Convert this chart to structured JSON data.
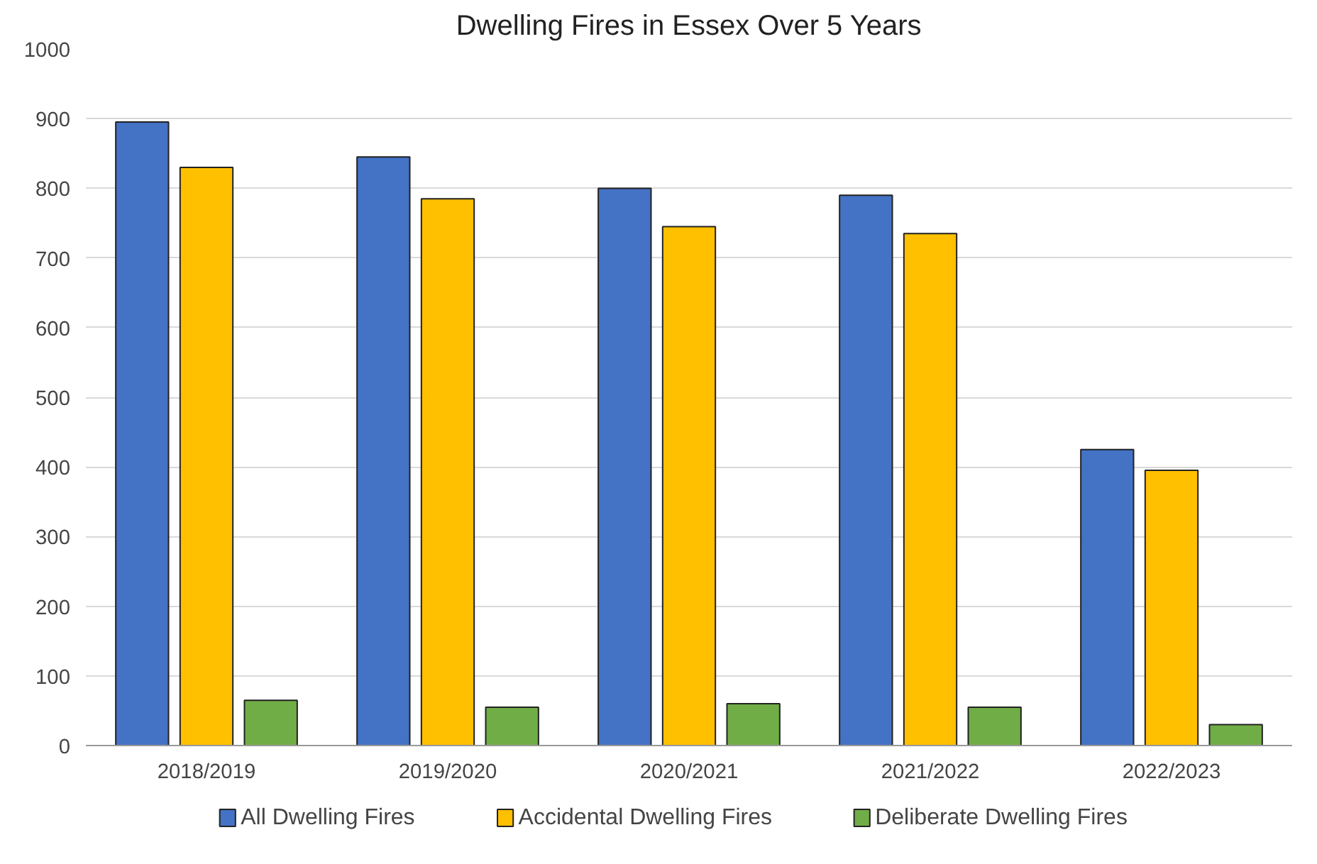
{
  "chart_data": {
    "type": "bar",
    "title": "Dwelling Fires in Essex Over 5 Years",
    "categories": [
      "2018/2019",
      "2019/2020",
      "2020/2021",
      "2021/2022",
      "2022/2023"
    ],
    "series": [
      {
        "name": "All Dwelling Fires",
        "color": "#4472c4",
        "values": [
          895,
          845,
          800,
          790,
          425
        ]
      },
      {
        "name": "Accidental Dwelling Fires",
        "color": "#ffc000",
        "values": [
          830,
          785,
          745,
          735,
          395
        ]
      },
      {
        "name": "Deliberate Dwelling Fires",
        "color": "#70ad47",
        "values": [
          65,
          55,
          60,
          55,
          30
        ]
      }
    ],
    "ylim": [
      0,
      1000
    ],
    "yticks": [
      0,
      100,
      200,
      300,
      400,
      500,
      600,
      700,
      800,
      900,
      1000
    ],
    "grid": "y",
    "legend": "bottom"
  }
}
